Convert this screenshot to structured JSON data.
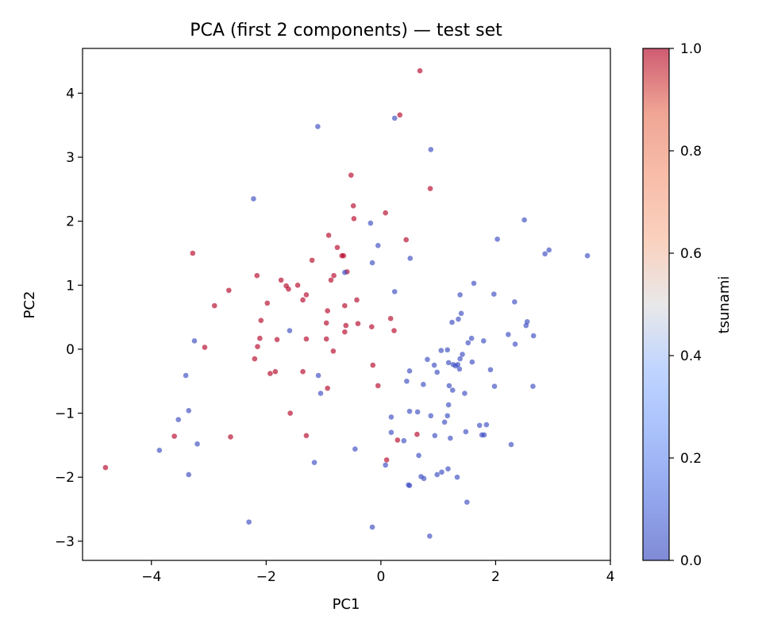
{
  "chart_data": {
    "type": "scatter",
    "title": "PCA (first 2 components) — test set",
    "xlabel": "PC1",
    "ylabel": "PC2",
    "xlim": [
      -5.2,
      4.0
    ],
    "ylim": [
      -3.3,
      4.7
    ],
    "xticks": [
      -4,
      -2,
      0,
      2,
      4
    ],
    "xtick_labels": [
      "−4",
      "−2",
      "0",
      "2",
      "4"
    ],
    "yticks": [
      -3,
      -2,
      -1,
      0,
      1,
      2,
      3,
      4
    ],
    "ytick_labels": [
      "−3",
      "−2",
      "−1",
      "0",
      "1",
      "2",
      "3",
      "4"
    ],
    "grid": false,
    "colormap": "coolwarm",
    "colorbar": {
      "label": "tsunami",
      "range": [
        0,
        1
      ],
      "ticks": [
        0,
        0.2,
        0.4,
        0.6,
        0.8,
        1.0
      ],
      "tick_labels": [
        "0.0",
        "0.2",
        "0.4",
        "0.6",
        "0.8",
        "1.0"
      ]
    },
    "colors": {
      "class_0": "#3b4cc0",
      "class_1": "#b40426"
    },
    "points": [
      {
        "x": 0.68,
        "y": 4.35,
        "c": 1
      },
      {
        "x": 0.33,
        "y": 3.66,
        "c": 1
      },
      {
        "x": 0.24,
        "y": 3.61,
        "c": 0
      },
      {
        "x": -1.1,
        "y": 3.48,
        "c": 0
      },
      {
        "x": 0.87,
        "y": 3.12,
        "c": 0
      },
      {
        "x": -0.52,
        "y": 2.72,
        "c": 1
      },
      {
        "x": 0.86,
        "y": 2.51,
        "c": 1
      },
      {
        "x": -2.22,
        "y": 2.35,
        "c": 0
      },
      {
        "x": -0.48,
        "y": 2.24,
        "c": 1
      },
      {
        "x": 0.08,
        "y": 2.13,
        "c": 1
      },
      {
        "x": -0.47,
        "y": 2.04,
        "c": 1
      },
      {
        "x": 2.5,
        "y": 2.02,
        "c": 0
      },
      {
        "x": -0.18,
        "y": 1.97,
        "c": 0
      },
      {
        "x": -0.91,
        "y": 1.78,
        "c": 1
      },
      {
        "x": 2.03,
        "y": 1.72,
        "c": 0
      },
      {
        "x": 0.44,
        "y": 1.71,
        "c": 1
      },
      {
        "x": -0.05,
        "y": 1.62,
        "c": 0
      },
      {
        "x": -0.76,
        "y": 1.59,
        "c": 1
      },
      {
        "x": 2.93,
        "y": 1.55,
        "c": 0
      },
      {
        "x": 2.86,
        "y": 1.49,
        "c": 0
      },
      {
        "x": -3.28,
        "y": 1.5,
        "c": 1
      },
      {
        "x": -0.68,
        "y": 1.46,
        "c": 1
      },
      {
        "x": -0.65,
        "y": 1.46,
        "c": 1
      },
      {
        "x": 3.6,
        "y": 1.46,
        "c": 0
      },
      {
        "x": 0.51,
        "y": 1.42,
        "c": 0
      },
      {
        "x": -1.2,
        "y": 1.39,
        "c": 1
      },
      {
        "x": -0.15,
        "y": 1.35,
        "c": 0
      },
      {
        "x": -0.59,
        "y": 1.21,
        "c": 1
      },
      {
        "x": -0.63,
        "y": 1.2,
        "c": 0
      },
      {
        "x": -2.16,
        "y": 1.15,
        "c": 1
      },
      {
        "x": -0.82,
        "y": 1.15,
        "c": 1
      },
      {
        "x": -0.87,
        "y": 1.08,
        "c": 1
      },
      {
        "x": -1.74,
        "y": 1.08,
        "c": 1
      },
      {
        "x": 1.62,
        "y": 1.03,
        "c": 0
      },
      {
        "x": -1.45,
        "y": 1.0,
        "c": 1
      },
      {
        "x": -1.65,
        "y": 0.99,
        "c": 1
      },
      {
        "x": -1.61,
        "y": 0.94,
        "c": 1
      },
      {
        "x": -2.65,
        "y": 0.92,
        "c": 1
      },
      {
        "x": 0.24,
        "y": 0.9,
        "c": 0
      },
      {
        "x": 1.97,
        "y": 0.86,
        "c": 0
      },
      {
        "x": 1.38,
        "y": 0.85,
        "c": 0
      },
      {
        "x": -1.3,
        "y": 0.85,
        "c": 1
      },
      {
        "x": -1.36,
        "y": 0.77,
        "c": 1
      },
      {
        "x": -0.42,
        "y": 0.77,
        "c": 1
      },
      {
        "x": 2.33,
        "y": 0.74,
        "c": 0
      },
      {
        "x": -1.98,
        "y": 0.72,
        "c": 1
      },
      {
        "x": -2.9,
        "y": 0.68,
        "c": 1
      },
      {
        "x": -0.63,
        "y": 0.68,
        "c": 1
      },
      {
        "x": -0.93,
        "y": 0.6,
        "c": 1
      },
      {
        "x": 1.4,
        "y": 0.56,
        "c": 0
      },
      {
        "x": 1.35,
        "y": 0.47,
        "c": 0
      },
      {
        "x": 0.17,
        "y": 0.48,
        "c": 1
      },
      {
        "x": -2.09,
        "y": 0.45,
        "c": 1
      },
      {
        "x": 2.55,
        "y": 0.43,
        "c": 0
      },
      {
        "x": 1.24,
        "y": 0.42,
        "c": 0
      },
      {
        "x": -0.95,
        "y": 0.41,
        "c": 1
      },
      {
        "x": -0.4,
        "y": 0.4,
        "c": 1
      },
      {
        "x": 2.53,
        "y": 0.37,
        "c": 0
      },
      {
        "x": -0.61,
        "y": 0.37,
        "c": 1
      },
      {
        "x": -0.16,
        "y": 0.35,
        "c": 1
      },
      {
        "x": -1.59,
        "y": 0.29,
        "c": 0
      },
      {
        "x": 0.23,
        "y": 0.29,
        "c": 1
      },
      {
        "x": -0.63,
        "y": 0.27,
        "c": 1
      },
      {
        "x": 2.22,
        "y": 0.23,
        "c": 0
      },
      {
        "x": 2.66,
        "y": 0.21,
        "c": 0
      },
      {
        "x": 1.58,
        "y": 0.17,
        "c": 0
      },
      {
        "x": -2.11,
        "y": 0.17,
        "c": 1
      },
      {
        "x": -1.3,
        "y": 0.16,
        "c": 1
      },
      {
        "x": -0.95,
        "y": 0.16,
        "c": 1
      },
      {
        "x": -1.81,
        "y": 0.15,
        "c": 1
      },
      {
        "x": -3.25,
        "y": 0.13,
        "c": 0
      },
      {
        "x": 1.79,
        "y": 0.13,
        "c": 0
      },
      {
        "x": 1.52,
        "y": 0.1,
        "c": 0
      },
      {
        "x": 2.34,
        "y": 0.08,
        "c": 0
      },
      {
        "x": -2.15,
        "y": 0.04,
        "c": 1
      },
      {
        "x": -3.07,
        "y": 0.03,
        "c": 1
      },
      {
        "x": -0.83,
        "y": -0.03,
        "c": 1
      },
      {
        "x": 1.05,
        "y": -0.02,
        "c": 0
      },
      {
        "x": 1.16,
        "y": -0.01,
        "c": 0
      },
      {
        "x": 1.42,
        "y": -0.08,
        "c": 0
      },
      {
        "x": -2.2,
        "y": -0.15,
        "c": 1
      },
      {
        "x": 1.38,
        "y": -0.15,
        "c": 0
      },
      {
        "x": 0.81,
        "y": -0.16,
        "c": 0
      },
      {
        "x": 1.59,
        "y": -0.2,
        "c": 0
      },
      {
        "x": 1.18,
        "y": -0.21,
        "c": 0
      },
      {
        "x": 1.34,
        "y": -0.24,
        "c": 0
      },
      {
        "x": 1.26,
        "y": -0.24,
        "c": 0
      },
      {
        "x": 0.93,
        "y": -0.25,
        "c": 0
      },
      {
        "x": 1.3,
        "y": -0.26,
        "c": 0
      },
      {
        "x": -0.14,
        "y": -0.25,
        "c": 1
      },
      {
        "x": 1.37,
        "y": -0.31,
        "c": 0
      },
      {
        "x": 1.91,
        "y": -0.32,
        "c": 0
      },
      {
        "x": 0.5,
        "y": -0.34,
        "c": 0
      },
      {
        "x": -1.36,
        "y": -0.35,
        "c": 1
      },
      {
        "x": -1.84,
        "y": -0.35,
        "c": 1
      },
      {
        "x": -1.93,
        "y": -0.38,
        "c": 1
      },
      {
        "x": 0.98,
        "y": -0.36,
        "c": 0
      },
      {
        "x": -3.4,
        "y": -0.41,
        "c": 0
      },
      {
        "x": -1.09,
        "y": -0.41,
        "c": 0
      },
      {
        "x": 0.45,
        "y": -0.5,
        "c": 0
      },
      {
        "x": 0.74,
        "y": -0.55,
        "c": 0
      },
      {
        "x": 1.19,
        "y": -0.57,
        "c": 0
      },
      {
        "x": 1.98,
        "y": -0.58,
        "c": 0
      },
      {
        "x": 2.65,
        "y": -0.58,
        "c": 0
      },
      {
        "x": -0.05,
        "y": -0.57,
        "c": 1
      },
      {
        "x": -0.93,
        "y": -0.61,
        "c": 1
      },
      {
        "x": 1.25,
        "y": -0.64,
        "c": 0
      },
      {
        "x": 1.46,
        "y": -0.69,
        "c": 0
      },
      {
        "x": -1.05,
        "y": -0.69,
        "c": 0
      },
      {
        "x": 1.18,
        "y": -0.87,
        "c": 0
      },
      {
        "x": -3.35,
        "y": -0.96,
        "c": 0
      },
      {
        "x": 0.5,
        "y": -0.97,
        "c": 0
      },
      {
        "x": 0.64,
        "y": -0.98,
        "c": 0
      },
      {
        "x": -1.58,
        "y": -1.0,
        "c": 1
      },
      {
        "x": 0.87,
        "y": -1.04,
        "c": 0
      },
      {
        "x": 1.16,
        "y": -1.04,
        "c": 0
      },
      {
        "x": 0.18,
        "y": -1.06,
        "c": 0
      },
      {
        "x": -3.53,
        "y": -1.1,
        "c": 0
      },
      {
        "x": 1.11,
        "y": -1.14,
        "c": 0
      },
      {
        "x": 1.84,
        "y": -1.18,
        "c": 0
      },
      {
        "x": 1.72,
        "y": -1.19,
        "c": 0
      },
      {
        "x": 1.48,
        "y": -1.29,
        "c": 0
      },
      {
        "x": 0.18,
        "y": -1.3,
        "c": 0
      },
      {
        "x": 0.94,
        "y": -1.35,
        "c": 0
      },
      {
        "x": 1.76,
        "y": -1.34,
        "c": 0
      },
      {
        "x": 1.8,
        "y": -1.34,
        "c": 0
      },
      {
        "x": -3.6,
        "y": -1.36,
        "c": 1
      },
      {
        "x": -2.62,
        "y": -1.37,
        "c": 1
      },
      {
        "x": -1.3,
        "y": -1.35,
        "c": 1
      },
      {
        "x": 1.21,
        "y": -1.39,
        "c": 0
      },
      {
        "x": 0.29,
        "y": -1.42,
        "c": 1
      },
      {
        "x": 0.4,
        "y": -1.43,
        "c": 0
      },
      {
        "x": 0.63,
        "y": -1.33,
        "c": 1
      },
      {
        "x": -3.2,
        "y": -1.48,
        "c": 0
      },
      {
        "x": 2.27,
        "y": -1.49,
        "c": 0
      },
      {
        "x": -0.45,
        "y": -1.56,
        "c": 0
      },
      {
        "x": -3.86,
        "y": -1.58,
        "c": 0
      },
      {
        "x": 0.66,
        "y": -1.66,
        "c": 0
      },
      {
        "x": 0.1,
        "y": -1.73,
        "c": 1
      },
      {
        "x": -1.16,
        "y": -1.77,
        "c": 0
      },
      {
        "x": 0.08,
        "y": -1.81,
        "c": 0
      },
      {
        "x": -4.8,
        "y": -1.85,
        "c": 1
      },
      {
        "x": 1.17,
        "y": -1.87,
        "c": 0
      },
      {
        "x": 1.06,
        "y": -1.92,
        "c": 0
      },
      {
        "x": 0.98,
        "y": -1.96,
        "c": 0
      },
      {
        "x": -3.35,
        "y": -1.96,
        "c": 0
      },
      {
        "x": 0.7,
        "y": -1.99,
        "c": 0
      },
      {
        "x": 1.33,
        "y": -2.0,
        "c": 0
      },
      {
        "x": 0.75,
        "y": -2.02,
        "c": 0
      },
      {
        "x": 0.48,
        "y": -2.12,
        "c": 0
      },
      {
        "x": 0.5,
        "y": -2.13,
        "c": 0
      },
      {
        "x": 1.5,
        "y": -2.39,
        "c": 0
      },
      {
        "x": -2.3,
        "y": -2.7,
        "c": 0
      },
      {
        "x": -0.15,
        "y": -2.78,
        "c": 0
      },
      {
        "x": 0.85,
        "y": -2.92,
        "c": 0
      }
    ]
  }
}
